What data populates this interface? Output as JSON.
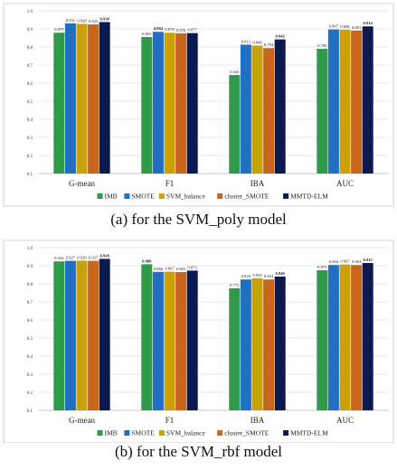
{
  "chart_data": [
    {
      "type": "bar",
      "caption": "(a) for the SVM_poly model",
      "categories": [
        "G-mean",
        "F1",
        "IBA",
        "AUC"
      ],
      "ylim": [
        0.1,
        1.0
      ],
      "yticks": [
        "0.1",
        "0.2",
        "0.3",
        "0.4",
        "0.5",
        "0.6",
        "0.7",
        "0.8",
        "0.9",
        "1.0"
      ],
      "grid": true,
      "legend": "bottom",
      "series": [
        {
          "name": "IMB",
          "color": "#2e9a4a",
          "values": [
            0.879,
            0.855,
            0.645,
            0.79
          ],
          "labels": [
            "0.879",
            "0.855",
            "0.645",
            "0.790"
          ]
        },
        {
          "name": "SMOTE",
          "color": "#1f6fc2",
          "values": [
            0.931,
            0.884,
            0.813,
            0.897
          ],
          "labels": [
            "0.931",
            "0.884",
            "0.813",
            "0.897"
          ]
        },
        {
          "name": "SVM_balance",
          "color": "#c9a20b",
          "values": [
            0.928,
            0.879,
            0.808,
            0.896
          ],
          "labels": [
            "0.928",
            "0.879",
            "0.808",
            "0.896"
          ]
        },
        {
          "name": "cluster_SMOTE",
          "color": "#c8661d",
          "values": [
            0.925,
            0.876,
            0.794,
            0.891
          ],
          "labels": [
            "0.925",
            "0.876",
            "0.794",
            "0.891"
          ]
        },
        {
          "name": "MMTD-ELM",
          "color": "#0c1a4f",
          "values": [
            0.938,
            0.877,
            0.842,
            0.914
          ],
          "labels": [
            "0.938",
            "0.877",
            "0.842",
            "0.914"
          ]
        }
      ],
      "bold": [
        [
          0,
          4
        ],
        [
          1,
          1
        ],
        [
          2,
          4
        ],
        [
          3,
          4
        ]
      ]
    },
    {
      "type": "bar",
      "caption": "(b) for the SVM_rbf model",
      "categories": [
        "G-mean",
        "F1",
        "IBA",
        "AUC"
      ],
      "ylim": [
        0.1,
        1.0
      ],
      "yticks": [
        "0.1",
        "0.2",
        "0.3",
        "0.4",
        "0.5",
        "0.6",
        "0.7",
        "0.8",
        "0.9",
        "1.0"
      ],
      "grid": true,
      "legend": "bottom",
      "series": [
        {
          "name": "IMB",
          "color": "#2e9a4a",
          "values": [
            0.924,
            0.908,
            0.775,
            0.875
          ],
          "labels": [
            "0.924",
            "0.908",
            "0.775",
            "0.875"
          ]
        },
        {
          "name": "SMOTE",
          "color": "#1f6fc2",
          "values": [
            0.927,
            0.866,
            0.824,
            0.904
          ],
          "labels": [
            "0.927",
            "0.866",
            "0.824",
            "0.904"
          ]
        },
        {
          "name": "SVM_balance",
          "color": "#c9a20b",
          "values": [
            0.928,
            0.867,
            0.83,
            0.907
          ],
          "labels": [
            "0.928",
            "0.867",
            "0.830",
            "0.907"
          ]
        },
        {
          "name": "cluster_SMOTE",
          "color": "#c8661d",
          "values": [
            0.927,
            0.865,
            0.824,
            0.904
          ],
          "labels": [
            "0.927",
            "0.865",
            "0.824",
            "0.904"
          ]
        },
        {
          "name": "MMTD-ELM",
          "color": "#0c1a4f",
          "values": [
            0.938,
            0.873,
            0.84,
            0.915
          ],
          "labels": [
            "0.938",
            "0.873",
            "0.840",
            "0.915"
          ]
        }
      ],
      "bold": [
        [
          0,
          4
        ],
        [
          1,
          0
        ],
        [
          2,
          4
        ],
        [
          3,
          4
        ]
      ]
    }
  ]
}
